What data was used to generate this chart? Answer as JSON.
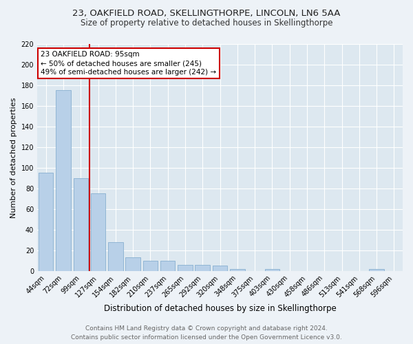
{
  "title": "23, OAKFIELD ROAD, SKELLINGTHORPE, LINCOLN, LN6 5AA",
  "subtitle": "Size of property relative to detached houses in Skellingthorpe",
  "xlabel": "Distribution of detached houses by size in Skellingthorpe",
  "ylabel": "Number of detached properties",
  "footer_line1": "Contains HM Land Registry data © Crown copyright and database right 2024.",
  "footer_line2": "Contains public sector information licensed under the Open Government Licence v3.0.",
  "bins": [
    "44sqm",
    "72sqm",
    "99sqm",
    "127sqm",
    "154sqm",
    "182sqm",
    "210sqm",
    "237sqm",
    "265sqm",
    "292sqm",
    "320sqm",
    "348sqm",
    "375sqm",
    "403sqm",
    "430sqm",
    "458sqm",
    "486sqm",
    "513sqm",
    "541sqm",
    "568sqm",
    "596sqm"
  ],
  "values": [
    95,
    175,
    90,
    75,
    28,
    13,
    10,
    10,
    6,
    6,
    5,
    2,
    0,
    2,
    0,
    0,
    0,
    0,
    0,
    2,
    0
  ],
  "bar_color": "#b8d0e8",
  "bar_edge_color": "#88afd0",
  "vline_color": "#cc0000",
  "annotation_text": "23 OAKFIELD ROAD: 95sqm\n← 50% of detached houses are smaller (245)\n49% of semi-detached houses are larger (242) →",
  "annotation_box_color": "#ffffff",
  "annotation_box_edge": "#cc0000",
  "ylim": [
    0,
    220
  ],
  "yticks": [
    0,
    20,
    40,
    60,
    80,
    100,
    120,
    140,
    160,
    180,
    200,
    220
  ],
  "bg_color": "#dde8f0",
  "grid_color": "#ffffff",
  "fig_bg_color": "#edf2f7",
  "title_fontsize": 9.5,
  "subtitle_fontsize": 8.5,
  "axis_label_fontsize": 8,
  "tick_fontsize": 7,
  "footer_fontsize": 6.5,
  "annotation_fontsize": 7.5
}
